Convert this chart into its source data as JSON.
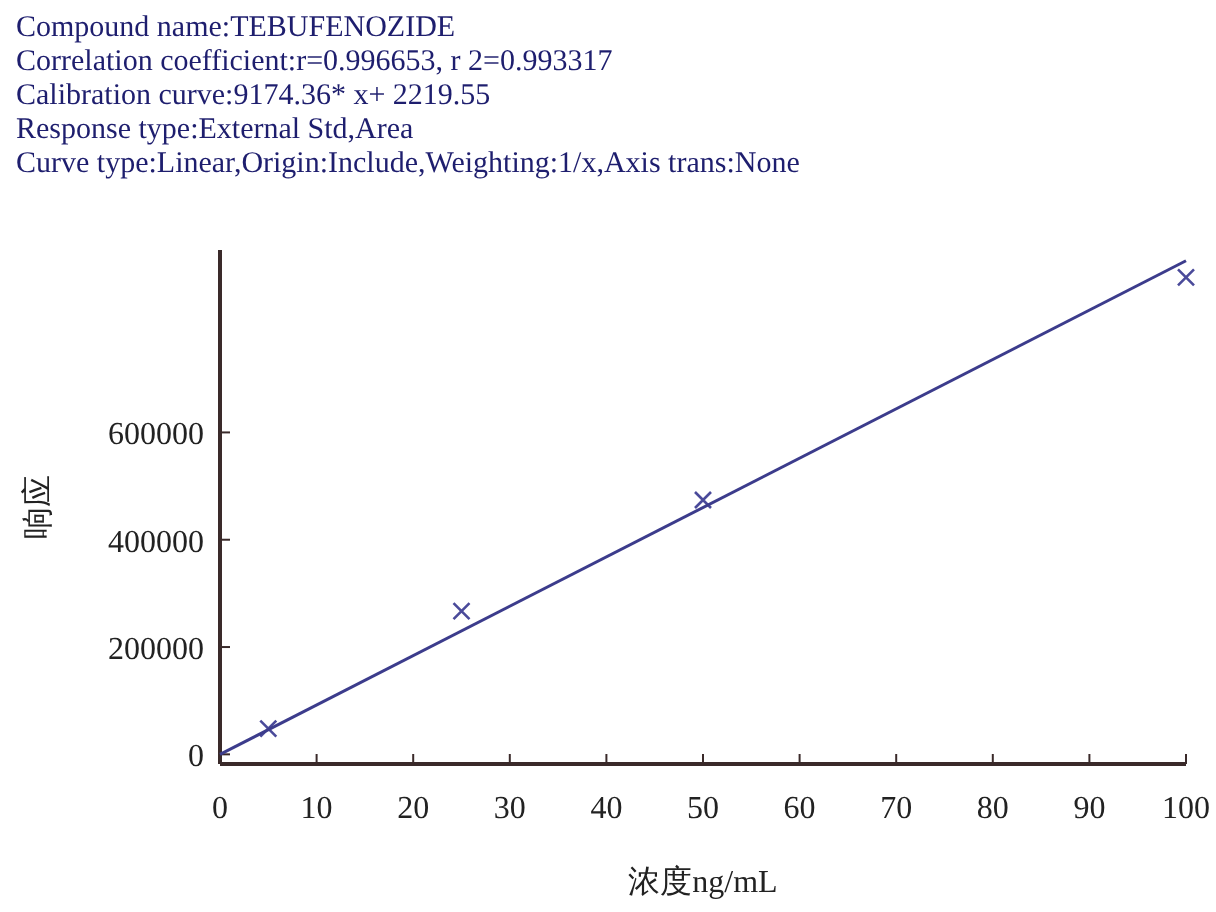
{
  "chart_data": {
    "type": "scatter",
    "title": "Compound name:TEBUFENOZIDE",
    "annotations": [
      "Correlation coefficient:r=0.996653, r 2=0.993317",
      "Calibration curve:9174.36* x+ 2219.55",
      "Response type:External Std,Area",
      "Curve type:Linear,Origin:Include,Weighting:1/x,Axis trans:None"
    ],
    "xlabel": "浓度ng/mL",
    "ylabel": "响应",
    "series": [
      {
        "color": "#4a4a9a",
        "marker": "cross",
        "x": [
          5,
          25,
          50,
          100
        ],
        "values": [
          48000,
          267000,
          474000,
          889000
        ]
      },
      {
        "type": "line",
        "color": "#3c3c8c",
        "marker": "none",
        "x": [
          0,
          100
        ],
        "values": [
          0,
          920000
        ]
      }
    ],
    "xlim": [
      0,
      100
    ],
    "xticks": [
      0,
      10,
      20,
      30,
      40,
      50,
      60,
      70,
      80,
      90,
      100
    ],
    "ylim": [
      -18000,
      940000
    ],
    "yticks": [
      0,
      200000,
      400000,
      600000
    ],
    "grid": false
  }
}
